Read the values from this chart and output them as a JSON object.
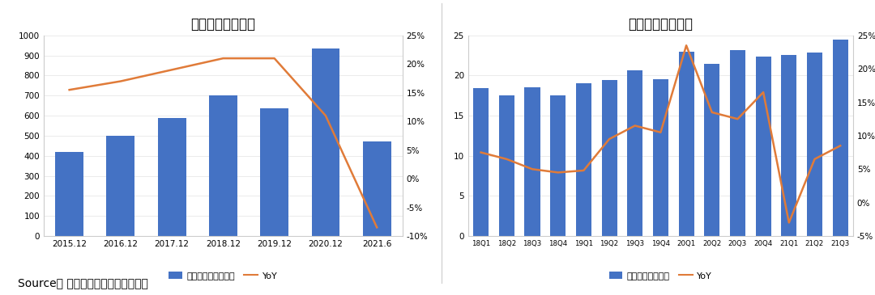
{
  "chart1": {
    "title": "永辉超市收入情况",
    "bar_labels": [
      "2015.12",
      "2016.12",
      "2017.12",
      "2018.12",
      "2019.12",
      "2020.12",
      "2021.6"
    ],
    "bar_values": [
      420,
      498,
      588,
      700,
      638,
      933,
      470
    ],
    "yoy_values": [
      15.5,
      17.0,
      19.0,
      21.0,
      21.0,
      11.0,
      -8.5
    ],
    "bar_color": "#4472C4",
    "line_color": "#E07B39",
    "ylim_left": [
      0,
      1000
    ],
    "ylim_right": [
      -10,
      25
    ],
    "yticks_left": [
      0,
      100,
      200,
      300,
      400,
      500,
      600,
      700,
      800,
      900,
      1000
    ],
    "yticks_right": [
      -10,
      -5,
      0,
      5,
      10,
      15,
      20,
      25
    ],
    "ytick_labels_right": [
      "-10%",
      "-5%",
      "0%",
      "5%",
      "10%",
      "15%",
      "20%",
      "25%"
    ],
    "legend_bar": "营业总收入（亿元）",
    "legend_line": "YoY"
  },
  "chart2": {
    "title": "红旗连锁收入情况",
    "bar_labels": [
      "18Q1",
      "18Q2",
      "18Q3",
      "18Q4",
      "19Q1",
      "19Q2",
      "19Q3",
      "19Q4",
      "20Q1",
      "20Q2",
      "20Q3",
      "20Q4",
      "21Q1",
      "21Q2",
      "21Q3"
    ],
    "bar_values": [
      18.4,
      17.5,
      18.5,
      17.5,
      19.0,
      19.4,
      20.6,
      19.5,
      23.0,
      21.5,
      23.2,
      22.4,
      22.6,
      22.9,
      24.5
    ],
    "yoy_values": [
      7.5,
      6.5,
      5.0,
      4.5,
      4.8,
      9.5,
      11.5,
      10.5,
      23.5,
      13.5,
      12.5,
      16.5,
      -3.0,
      6.5,
      8.5
    ],
    "bar_color": "#4472C4",
    "line_color": "#E07B39",
    "ylim_left": [
      0,
      25
    ],
    "ylim_right": [
      -5,
      25
    ],
    "yticks_left": [
      0,
      5,
      10,
      15,
      20,
      25
    ],
    "yticks_right": [
      -5,
      0,
      5,
      10,
      15,
      20,
      25
    ],
    "ytick_labels_right": [
      "-5%",
      "0%",
      "5%",
      "10%",
      "15%",
      "20%",
      "25%"
    ],
    "legend_bar": "营业收入（亿元）",
    "legend_line": "YoY"
  },
  "source_text": "Source： 公司公告，洞见数据研究院",
  "bg_color": "#FFFFFF",
  "title_fontsize": 12,
  "tick_fontsize": 7.5,
  "legend_fontsize": 8,
  "source_fontsize": 10
}
